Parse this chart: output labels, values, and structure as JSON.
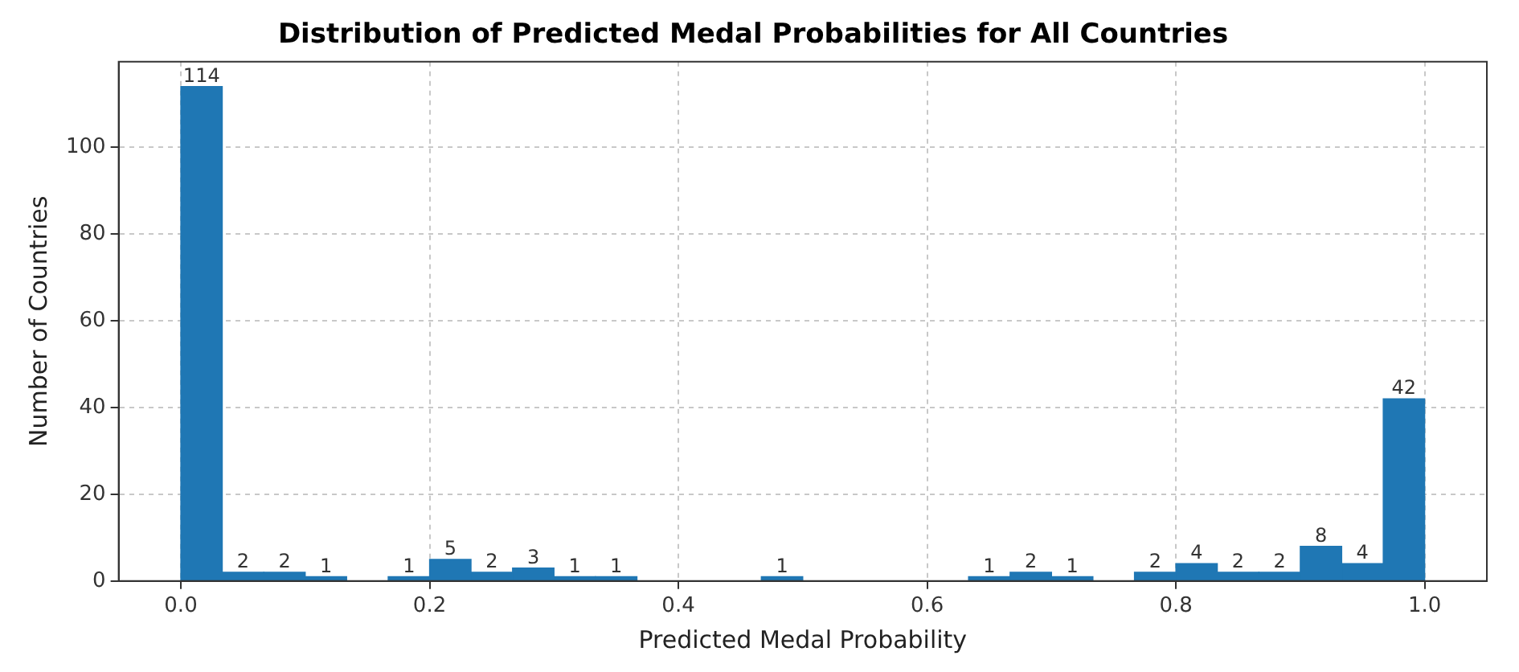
{
  "chart_data": {
    "type": "histogram",
    "title": "Distribution of Predicted Medal Probabilities for All Countries",
    "xlabel": "Predicted Medal Probability",
    "ylabel": "Number of Countries",
    "bins": [
      0,
      0.0333,
      0.0667,
      0.1,
      0.1333,
      0.1667,
      0.2,
      0.2333,
      0.2667,
      0.3,
      0.3333,
      0.3667,
      0.4,
      0.4333,
      0.4667,
      0.5,
      0.5333,
      0.5667,
      0.6,
      0.6333,
      0.6667,
      0.7,
      0.7333,
      0.7667,
      0.8,
      0.8333,
      0.8667,
      0.9,
      0.9333,
      0.9667,
      1
    ],
    "values": [
      114,
      2,
      2,
      1,
      0,
      1,
      5,
      2,
      3,
      1,
      1,
      0,
      0,
      0,
      1,
      0,
      0,
      0,
      0,
      1,
      2,
      1,
      0,
      2,
      4,
      2,
      2,
      8,
      4,
      42
    ],
    "value_labels": [
      "114",
      "2",
      "2",
      "1",
      null,
      "1",
      "5",
      "2",
      "3",
      "1",
      "1",
      null,
      null,
      null,
      "1",
      null,
      null,
      null,
      null,
      "1",
      "2",
      "1",
      null,
      "2",
      "4",
      "2",
      "2",
      "8",
      "4",
      "42"
    ],
    "color": "#1f77b4",
    "xlim": [
      -0.05,
      1.05
    ],
    "ylim": [
      0,
      119.7
    ],
    "xticks": [
      {
        "value": 0,
        "label": "0.0"
      },
      {
        "value": 0.2,
        "label": "0.2"
      },
      {
        "value": 0.4,
        "label": "0.4"
      },
      {
        "value": 0.6,
        "label": "0.6"
      },
      {
        "value": 0.8,
        "label": "0.8"
      },
      {
        "value": 1,
        "label": "1.0"
      }
    ],
    "yticks": [
      0,
      20,
      40,
      60,
      80,
      100
    ],
    "grid": true,
    "legend": false
  }
}
